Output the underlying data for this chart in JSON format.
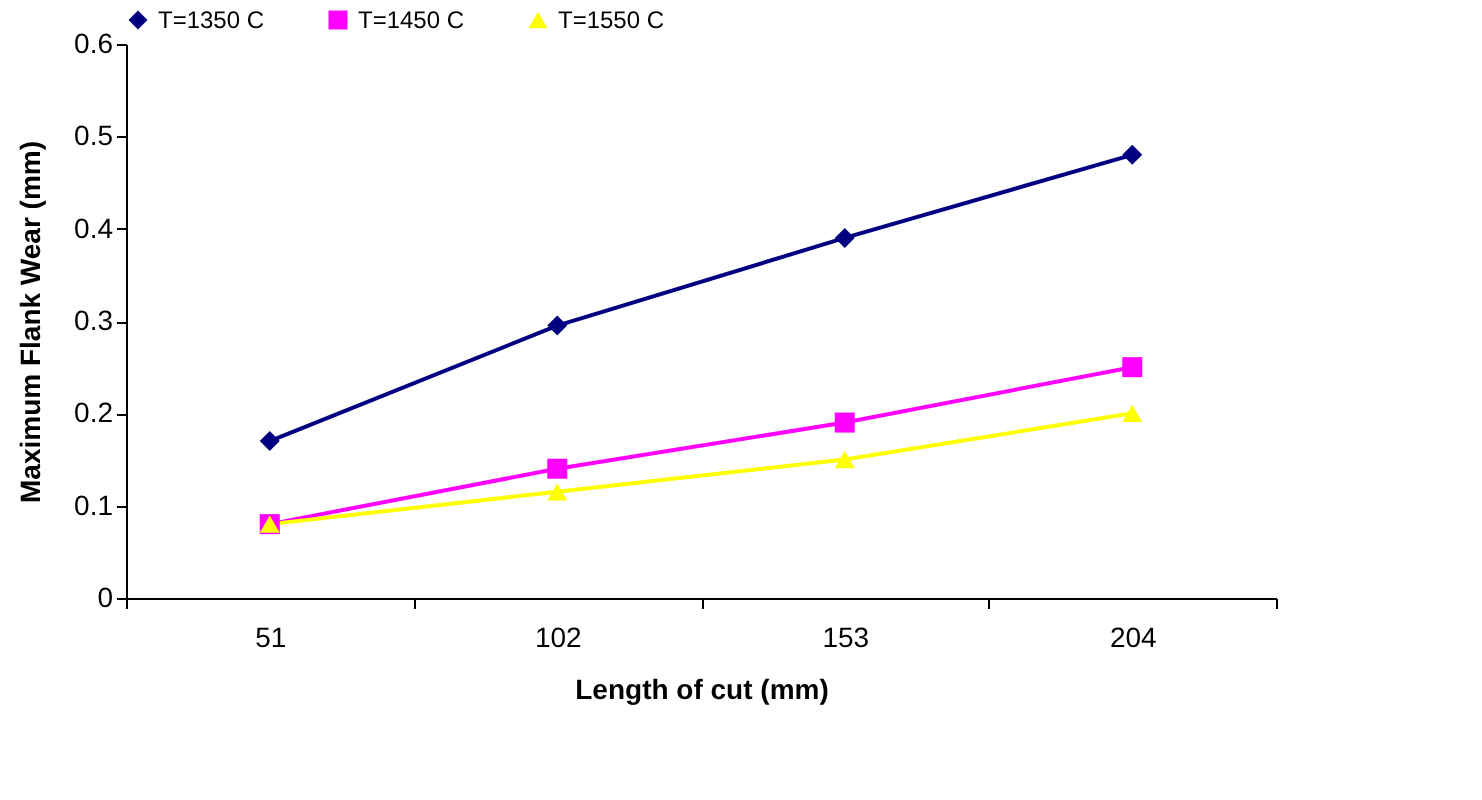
{
  "chart_data": {
    "type": "line",
    "xlabel": "Length of cut (mm)",
    "ylabel": "Maximum Flank Wear (mm)",
    "categories": [
      "51",
      "102",
      "153",
      "204"
    ],
    "series": [
      {
        "name": "T=1350 C",
        "color": "#000080",
        "marker": "diamond",
        "values": [
          0.17,
          0.295,
          0.39,
          0.48
        ]
      },
      {
        "name": "T=1450 C",
        "color": "#ff00ff",
        "marker": "square",
        "values": [
          0.08,
          0.14,
          0.19,
          0.25
        ]
      },
      {
        "name": "T=1550 C",
        "color": "#ffff00",
        "marker": "triangle",
        "values": [
          0.08,
          0.115,
          0.15,
          0.2
        ]
      }
    ],
    "ylim": [
      0,
      0.6
    ],
    "yticks": [
      0,
      0.1,
      0.2,
      0.3,
      0.4,
      0.5,
      0.6
    ],
    "grid": false,
    "legend": "top"
  }
}
